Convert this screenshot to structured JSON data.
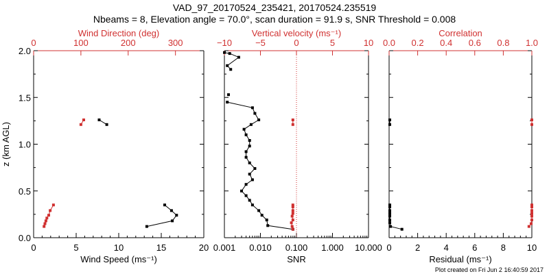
{
  "title_line1": "VAD_97_20170524_235421, 20170524.235519",
  "title_line2": "Nbeams = 8, Elevation angle = 70.0°, scan duration = 91.9 s, SNR Threshold = 0.008",
  "footer": "Plot created on Fri Jun  2 16:40:59 2017",
  "colors": {
    "black": "#000000",
    "red": "#d03030"
  },
  "chart_data": [
    {
      "type": "line",
      "panel": "left",
      "ylabel": "z (km AGL)",
      "ylim": [
        0,
        2.0
      ],
      "y_ticks": [
        "0.0",
        "0.5",
        "1.0",
        "1.5",
        "2.0"
      ],
      "bottom_axis": {
        "label": "Wind Speed (ms⁻¹)",
        "range": [
          0,
          20
        ],
        "ticks": [
          "0",
          "5",
          "10",
          "15",
          "20"
        ]
      },
      "top_axis": {
        "label": "Wind Direction (deg)",
        "range": [
          0,
          360
        ],
        "ticks": [
          "0",
          "100",
          "200",
          "300"
        ],
        "tick_values": [
          0,
          100,
          200,
          300
        ]
      },
      "series": [
        {
          "axis": "bottom",
          "color": "black",
          "segments": [
            [
              [
                13.3,
                0.12
              ],
              [
                16.3,
                0.18
              ],
              [
                16.8,
                0.24
              ],
              [
                16.2,
                0.29
              ],
              [
                15.4,
                0.35
              ]
            ],
            [
              [
                7.7,
                1.26
              ],
              [
                8.6,
                1.21
              ]
            ]
          ]
        },
        {
          "axis": "top",
          "color": "red",
          "segments": [
            [
              [
                22,
                0.12
              ],
              [
                24,
                0.15
              ],
              [
                26,
                0.18
              ],
              [
                28,
                0.21
              ],
              [
                32,
                0.24
              ],
              [
                35,
                0.29
              ],
              [
                42,
                0.35
              ]
            ],
            [
              [
                100,
                1.21
              ],
              [
                106,
                1.26
              ]
            ]
          ]
        }
      ]
    },
    {
      "type": "line",
      "panel": "middle",
      "ylim": [
        0,
        2.0
      ],
      "bottom_axis": {
        "label": "SNR",
        "scale": "log",
        "range": [
          0.001,
          10
        ],
        "ticks": [
          "0.001",
          "0.010",
          "0.100",
          "1.000",
          "10.000"
        ],
        "tick_values": [
          0.001,
          0.01,
          0.1,
          1,
          10
        ]
      },
      "top_axis": {
        "label": "Vertical velocity (ms⁻¹)",
        "range": [
          -10,
          10
        ],
        "ticks": [
          "−10",
          "−5",
          "0",
          "5",
          "10"
        ],
        "tick_values": [
          -10,
          -5,
          0,
          5,
          10
        ]
      },
      "series": [
        {
          "axis": "bottom",
          "color": "black",
          "segments": [
            [
              [
                0.08,
                0.09
              ],
              [
                0.016,
                0.13
              ],
              [
                0.015,
                0.19
              ],
              [
                0.011,
                0.24
              ],
              [
                0.009,
                0.29
              ],
              [
                0.006,
                0.35
              ],
              [
                0.005,
                0.4
              ],
              [
                0.004,
                0.45
              ],
              [
                0.003,
                0.5
              ],
              [
                0.004,
                0.57
              ],
              [
                0.006,
                0.62
              ],
              [
                0.005,
                0.68
              ],
              [
                0.007,
                0.74
              ],
              [
                0.005,
                0.8
              ],
              [
                0.004,
                0.86
              ],
              [
                0.004,
                0.92
              ],
              [
                0.005,
                0.98
              ],
              [
                0.005,
                1.04
              ],
              [
                0.004,
                1.1
              ],
              [
                0.0035,
                1.16
              ],
              [
                0.0055,
                1.21
              ],
              [
                0.009,
                1.26
              ],
              [
                0.007,
                1.33
              ],
              [
                0.006,
                1.39
              ],
              [
                0.0012,
                1.45
              ]
            ],
            [
              [
                0.0013,
                1.53
              ]
            ],
            [
              [
                0.0015,
                1.8
              ],
              [
                0.0012,
                1.84
              ],
              [
                0.0025,
                1.93
              ],
              [
                0.0014,
                1.97
              ],
              [
                0.001,
                1.98
              ]
            ]
          ]
        },
        {
          "axis": "top",
          "color": "red",
          "segments": [
            [
              [
                -0.5,
                0.09
              ],
              [
                -0.6,
                0.12
              ],
              [
                -0.7,
                0.16
              ],
              [
                -0.5,
                0.19
              ],
              [
                -0.6,
                0.23
              ],
              [
                -0.5,
                0.26
              ],
              [
                -0.5,
                0.29
              ],
              [
                -0.5,
                0.33
              ],
              [
                -0.5,
                0.35
              ]
            ],
            [
              [
                -0.5,
                1.21
              ],
              [
                -0.5,
                1.26
              ]
            ]
          ]
        }
      ],
      "reference_lines": [
        {
          "axis": "top",
          "value": 0,
          "style": "dotted",
          "color": "red"
        }
      ]
    },
    {
      "type": "line",
      "panel": "right",
      "ylim": [
        0,
        2.0
      ],
      "bottom_axis": {
        "label": "Residual (ms⁻¹)",
        "range": [
          0,
          10
        ],
        "ticks": [
          "0",
          "2",
          "4",
          "6",
          "8",
          "10"
        ],
        "tick_values": [
          0,
          2,
          4,
          6,
          8,
          10
        ]
      },
      "top_axis": {
        "label": "Correlation",
        "range": [
          0,
          1
        ],
        "ticks": [
          "0.0",
          "0.2",
          "0.4",
          "0.6",
          "0.8",
          "1.0"
        ],
        "tick_values": [
          0,
          0.2,
          0.4,
          0.6,
          0.8,
          1.0
        ]
      },
      "series": [
        {
          "axis": "bottom",
          "color": "black",
          "segments": [
            [
              [
                0.9,
                0.09
              ],
              [
                0.1,
                0.12
              ],
              [
                0.05,
                0.16
              ],
              [
                0.05,
                0.19
              ],
              [
                0.05,
                0.23
              ],
              [
                0.05,
                0.26
              ],
              [
                0.05,
                0.29
              ],
              [
                0.05,
                0.33
              ],
              [
                0.05,
                0.35
              ]
            ],
            [
              [
                0.05,
                1.21
              ],
              [
                0.05,
                1.26
              ]
            ]
          ]
        },
        {
          "axis": "top",
          "color": "red",
          "segments": [
            [
              [
                0.98,
                0.12
              ],
              [
                0.995,
                0.15
              ],
              [
                1.0,
                0.19
              ],
              [
                1.0,
                0.23
              ],
              [
                1.0,
                0.26
              ],
              [
                1.0,
                0.29
              ],
              [
                1.0,
                0.33
              ],
              [
                1.0,
                0.35
              ]
            ],
            [
              [
                1.0,
                1.21
              ],
              [
                1.0,
                1.26
              ]
            ]
          ]
        }
      ]
    }
  ]
}
